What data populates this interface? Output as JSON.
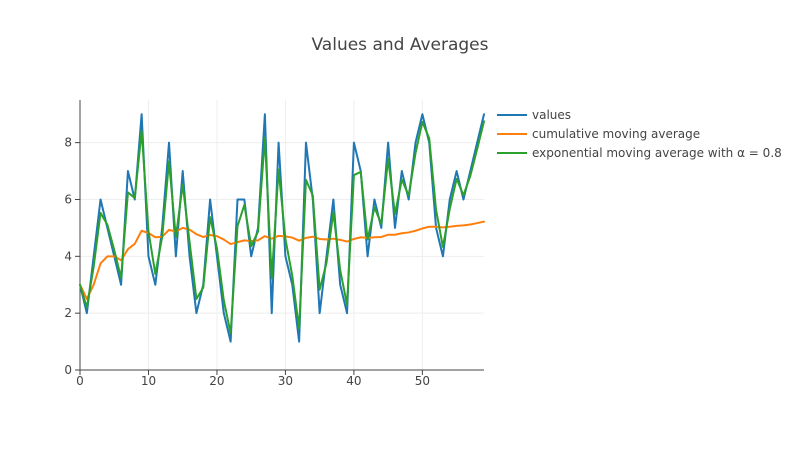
{
  "chart_data": {
    "type": "line",
    "title": "Values and Averages",
    "xlabel": "",
    "ylabel": "",
    "xlim": [
      0,
      59
    ],
    "ylim": [
      0,
      9.5
    ],
    "x_ticks": [
      0,
      10,
      20,
      30,
      40,
      50
    ],
    "y_ticks": [
      0,
      2,
      4,
      6,
      8
    ],
    "grid": true,
    "legend_position": "right",
    "x": [
      0,
      1,
      2,
      3,
      4,
      5,
      6,
      7,
      8,
      9,
      10,
      11,
      12,
      13,
      14,
      15,
      16,
      17,
      18,
      19,
      20,
      21,
      22,
      23,
      24,
      25,
      26,
      27,
      28,
      29,
      30,
      31,
      32,
      33,
      34,
      35,
      36,
      37,
      38,
      39,
      40,
      41,
      42,
      43,
      44,
      45,
      46,
      47,
      48,
      49,
      50,
      51,
      52,
      53,
      54,
      55,
      56,
      57,
      58,
      59
    ],
    "series": [
      {
        "name": "values",
        "color": "#1f77b4",
        "values": [
          3,
          2,
          4,
          6,
          5,
          4,
          3,
          7,
          6,
          9,
          4,
          3,
          5,
          8,
          4,
          7,
          4,
          2,
          3,
          6,
          4,
          2,
          1,
          6,
          6,
          4,
          5,
          9,
          2,
          8,
          4,
          3,
          1,
          8,
          6,
          2,
          4,
          6,
          3,
          2,
          8,
          7,
          4,
          6,
          5,
          8,
          5,
          7,
          6,
          8,
          9,
          8,
          5,
          4,
          6,
          7,
          6,
          7,
          8,
          9
        ]
      },
      {
        "name": "cumulative moving average",
        "color": "#ff7f0e",
        "values": [
          3.0,
          2.5,
          3.0,
          3.75,
          4.0,
          4.0,
          3.86,
          4.25,
          4.44,
          4.9,
          4.82,
          4.67,
          4.69,
          4.93,
          4.87,
          5.0,
          4.94,
          4.78,
          4.68,
          4.75,
          4.71,
          4.59,
          4.43,
          4.5,
          4.56,
          4.54,
          4.56,
          4.71,
          4.62,
          4.72,
          4.7,
          4.66,
          4.55,
          4.65,
          4.69,
          4.61,
          4.59,
          4.62,
          4.58,
          4.52,
          4.61,
          4.67,
          4.65,
          4.67,
          4.68,
          4.76,
          4.76,
          4.81,
          4.84,
          4.9,
          4.98,
          5.04,
          5.04,
          5.02,
          5.04,
          5.07,
          5.09,
          5.12,
          5.17,
          5.22
        ]
      },
      {
        "name": "exponential moving average with α = 0.8",
        "color": "#2ca02c",
        "values": [
          3.0,
          2.2,
          3.64,
          5.53,
          5.11,
          4.22,
          3.24,
          6.25,
          6.05,
          8.41,
          4.88,
          3.38,
          4.68,
          7.33,
          4.67,
          6.53,
          4.51,
          2.5,
          2.9,
          5.38,
          4.28,
          2.45,
          1.29,
          5.06,
          5.81,
          4.36,
          4.87,
          8.17,
          3.23,
          7.05,
          4.61,
          3.32,
          1.46,
          6.69,
          6.14,
          2.83,
          3.77,
          5.55,
          3.51,
          2.3,
          6.86,
          6.97,
          4.59,
          5.72,
          5.14,
          7.43,
          5.49,
          6.7,
          6.14,
          7.63,
          8.73,
          8.15,
          5.63,
          4.33,
          5.67,
          6.73,
          6.15,
          6.83,
          7.77,
          8.75
        ]
      }
    ]
  }
}
